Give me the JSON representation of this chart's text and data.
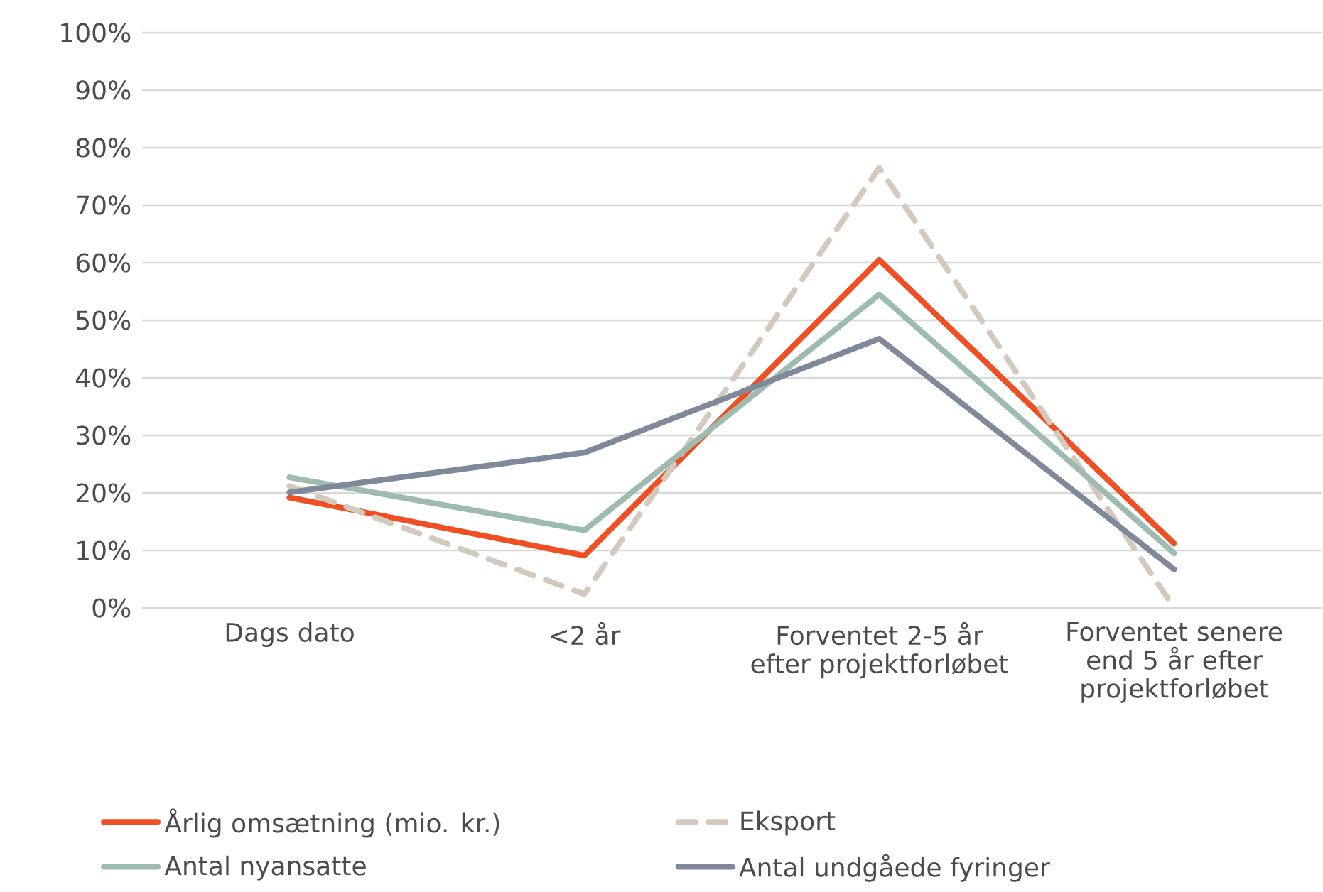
{
  "chart_data": {
    "type": "line",
    "categories": [
      "Dags dato",
      "<2 år",
      "Forventet 2-5 år efter projektforløbet",
      "Forventet senere end 5 år efter projektforløbet"
    ],
    "series": [
      {
        "name": "Årlig omsætning (mio. kr.)",
        "color": "#f04e23",
        "values": [
          19.2,
          9.1,
          60.5,
          11.2
        ]
      },
      {
        "name": "Eksport",
        "color": "#d4c9bd",
        "line_style": "dashed",
        "values": [
          21.2,
          2.4,
          76.5,
          0
        ]
      },
      {
        "name": "Antal nyansatte",
        "color": "#9dbbae",
        "values": [
          22.7,
          13.5,
          54.5,
          9.5
        ]
      },
      {
        "name": "Antal undgåede fyringer",
        "color": "#7f8999",
        "values": [
          20.1,
          27,
          46.8,
          6.7
        ]
      }
    ],
    "ylim": [
      0,
      100
    ],
    "yticks": [
      {
        "value": 0,
        "label": "0%"
      },
      {
        "value": 10,
        "label": "10%"
      },
      {
        "value": 20,
        "label": "20%"
      },
      {
        "value": 30,
        "label": "30%"
      },
      {
        "value": 40,
        "label": "40%"
      },
      {
        "value": 50,
        "label": "50%"
      },
      {
        "value": 60,
        "label": "60%"
      },
      {
        "value": 70,
        "label": "70%"
      },
      {
        "value": 80,
        "label": "80%"
      },
      {
        "value": 90,
        "label": "90%"
      },
      {
        "value": 100,
        "label": "100%"
      }
    ],
    "grid": "y",
    "legend": "bottom",
    "marker": "none",
    "line_style": "solid"
  }
}
